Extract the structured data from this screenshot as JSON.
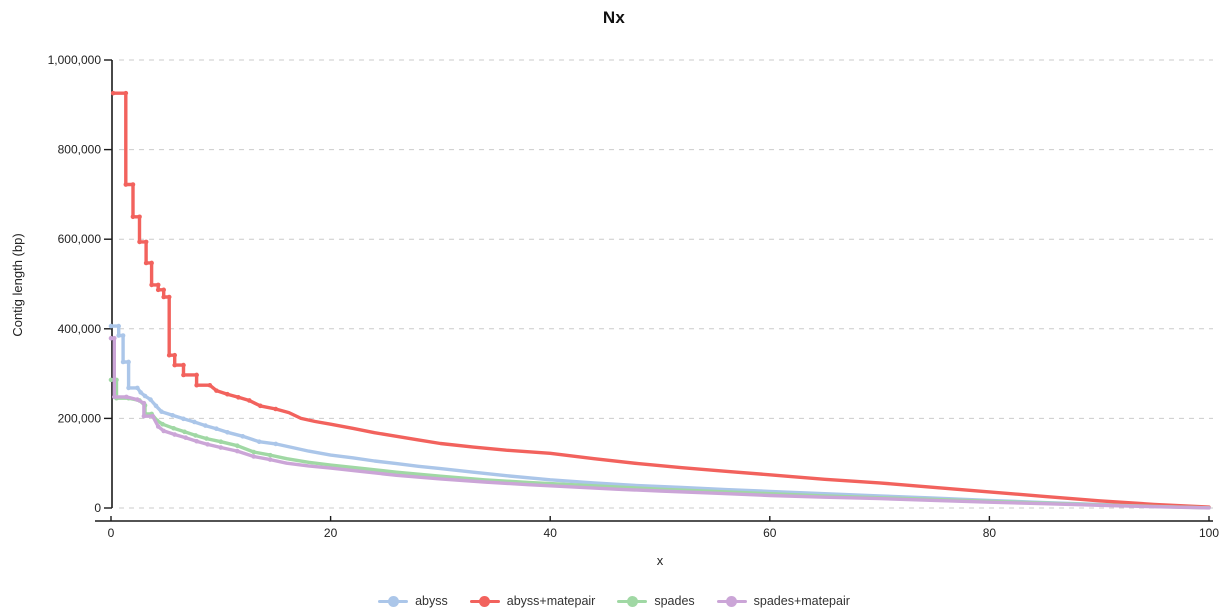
{
  "chart_data": {
    "type": "line",
    "title": "Nx",
    "xlabel": "x",
    "ylabel": "Contig length (bp)",
    "xlim": [
      0,
      100
    ],
    "ylim": [
      0,
      1000000
    ],
    "x_ticks": [
      0,
      20,
      40,
      60,
      80,
      100
    ],
    "y_ticks": [
      0,
      200000,
      400000,
      600000,
      800000,
      1000000
    ],
    "y_tick_labels": [
      "0",
      "200,000",
      "400,000",
      "600,000",
      "800,000",
      "1,000,000"
    ],
    "grid": "horizontal dashed gridlines",
    "legend_position": "bottom center",
    "axis_color": "#1a1a1a",
    "grid_color": "#cbcbcb",
    "series": [
      {
        "name": "abyss",
        "color": "#abc6e9",
        "points": [
          [
            0,
            406000
          ],
          [
            0.7,
            406000
          ],
          [
            0.7,
            385000
          ],
          [
            1.1,
            385000
          ],
          [
            1.1,
            326000
          ],
          [
            1.6,
            326000
          ],
          [
            1.6,
            268000
          ],
          [
            2.4,
            268000
          ],
          [
            2.7,
            258000
          ],
          [
            3.1,
            250000
          ],
          [
            3.6,
            242000
          ],
          [
            4.1,
            228000
          ],
          [
            4.6,
            215000
          ],
          [
            5.6,
            207000
          ],
          [
            6.6,
            199000
          ],
          [
            7.6,
            192000
          ],
          [
            8.6,
            184000
          ],
          [
            9.6,
            177000
          ],
          [
            10.6,
            169000
          ],
          [
            12,
            160000
          ],
          [
            13.5,
            148000
          ],
          [
            15,
            143000
          ],
          [
            16.5,
            135000
          ],
          [
            18,
            127000
          ],
          [
            20,
            118000
          ],
          [
            22,
            112000
          ],
          [
            24,
            105000
          ],
          [
            26,
            99000
          ],
          [
            28,
            93000
          ],
          [
            30,
            88000
          ],
          [
            33,
            80000
          ],
          [
            36,
            72000
          ],
          [
            40,
            63000
          ],
          [
            44,
            56000
          ],
          [
            48,
            50000
          ],
          [
            52,
            46000
          ],
          [
            56,
            41000
          ],
          [
            60,
            37000
          ],
          [
            65,
            32000
          ],
          [
            70,
            27000
          ],
          [
            75,
            22000
          ],
          [
            80,
            17000
          ],
          [
            85,
            12000
          ],
          [
            90,
            8000
          ],
          [
            95,
            4000
          ],
          [
            100,
            600
          ]
        ]
      },
      {
        "name": "abyss+matepair",
        "color": "#f2625d",
        "points": [
          [
            0.2,
            926000
          ],
          [
            1.35,
            926000
          ],
          [
            1.35,
            722000
          ],
          [
            2.0,
            722000
          ],
          [
            2.0,
            650000
          ],
          [
            2.6,
            650000
          ],
          [
            2.6,
            594000
          ],
          [
            3.2,
            594000
          ],
          [
            3.2,
            547000
          ],
          [
            3.7,
            547000
          ],
          [
            3.7,
            498000
          ],
          [
            4.3,
            498000
          ],
          [
            4.3,
            487000
          ],
          [
            4.8,
            487000
          ],
          [
            4.8,
            471000
          ],
          [
            5.3,
            471000
          ],
          [
            5.3,
            341000
          ],
          [
            5.8,
            341000
          ],
          [
            5.8,
            319000
          ],
          [
            6.6,
            319000
          ],
          [
            6.6,
            297000
          ],
          [
            7.8,
            297000
          ],
          [
            7.8,
            274000
          ],
          [
            9.0,
            274000
          ],
          [
            9.6,
            262000
          ],
          [
            10.6,
            254000
          ],
          [
            11.6,
            247000
          ],
          [
            12.6,
            240000
          ],
          [
            13.6,
            228000
          ],
          [
            15,
            221000
          ],
          [
            16.2,
            213000
          ],
          [
            17.3,
            200000
          ],
          [
            18.6,
            193000
          ],
          [
            20,
            187000
          ],
          [
            22,
            178000
          ],
          [
            24,
            168000
          ],
          [
            26,
            160000
          ],
          [
            28,
            152000
          ],
          [
            30,
            144000
          ],
          [
            33,
            136000
          ],
          [
            36,
            129000
          ],
          [
            40,
            122000
          ],
          [
            44,
            110000
          ],
          [
            48,
            99000
          ],
          [
            52,
            90000
          ],
          [
            56,
            82000
          ],
          [
            60,
            74000
          ],
          [
            65,
            64000
          ],
          [
            70,
            56000
          ],
          [
            75,
            46000
          ],
          [
            80,
            36000
          ],
          [
            85,
            26000
          ],
          [
            90,
            16000
          ],
          [
            95,
            8000
          ],
          [
            100,
            2000
          ]
        ]
      },
      {
        "name": "spades",
        "color": "#a0d8a4",
        "points": [
          [
            0,
            286000
          ],
          [
            0.5,
            286000
          ],
          [
            0.5,
            245000
          ],
          [
            1.6,
            245000
          ],
          [
            2.6,
            240000
          ],
          [
            3.1,
            229000
          ],
          [
            3.1,
            210000
          ],
          [
            3.7,
            210000
          ],
          [
            4.2,
            195000
          ],
          [
            4.7,
            187000
          ],
          [
            5.7,
            178000
          ],
          [
            6.7,
            170000
          ],
          [
            7.7,
            162000
          ],
          [
            8.7,
            155000
          ],
          [
            10,
            148000
          ],
          [
            11.5,
            139000
          ],
          [
            13,
            125000
          ],
          [
            14.5,
            118000
          ],
          [
            16,
            110000
          ],
          [
            18,
            102000
          ],
          [
            20,
            96000
          ],
          [
            23,
            88000
          ],
          [
            26,
            80000
          ],
          [
            30,
            71000
          ],
          [
            34,
            63000
          ],
          [
            38,
            57000
          ],
          [
            42,
            52000
          ],
          [
            46,
            47000
          ],
          [
            50,
            42000
          ],
          [
            55,
            37000
          ],
          [
            60,
            32000
          ],
          [
            65,
            27000
          ],
          [
            70,
            23000
          ],
          [
            75,
            19000
          ],
          [
            80,
            15000
          ],
          [
            85,
            11000
          ],
          [
            90,
            7000
          ],
          [
            95,
            3500
          ],
          [
            100,
            400
          ]
        ]
      },
      {
        "name": "spades+matepair",
        "color": "#cba5d7",
        "points": [
          [
            0,
            379000
          ],
          [
            0.3,
            379000
          ],
          [
            0.3,
            248000
          ],
          [
            1.4,
            248000
          ],
          [
            2.4,
            242000
          ],
          [
            3.0,
            234000
          ],
          [
            3.0,
            205000
          ],
          [
            3.8,
            205000
          ],
          [
            4.3,
            182000
          ],
          [
            4.8,
            172000
          ],
          [
            5.8,
            164000
          ],
          [
            6.8,
            157000
          ],
          [
            7.8,
            149000
          ],
          [
            8.8,
            142000
          ],
          [
            10,
            135000
          ],
          [
            11.5,
            127000
          ],
          [
            13,
            115000
          ],
          [
            14.5,
            108000
          ],
          [
            16,
            100000
          ],
          [
            18,
            94000
          ],
          [
            20,
            89000
          ],
          [
            23,
            81000
          ],
          [
            26,
            73000
          ],
          [
            30,
            65000
          ],
          [
            34,
            58000
          ],
          [
            38,
            52000
          ],
          [
            42,
            47000
          ],
          [
            46,
            42000
          ],
          [
            50,
            38000
          ],
          [
            55,
            33000
          ],
          [
            60,
            28000
          ],
          [
            65,
            24000
          ],
          [
            70,
            21000
          ],
          [
            75,
            17000
          ],
          [
            80,
            13000
          ],
          [
            85,
            9500
          ],
          [
            90,
            6000
          ],
          [
            95,
            3000
          ],
          [
            100,
            300
          ]
        ]
      }
    ]
  }
}
